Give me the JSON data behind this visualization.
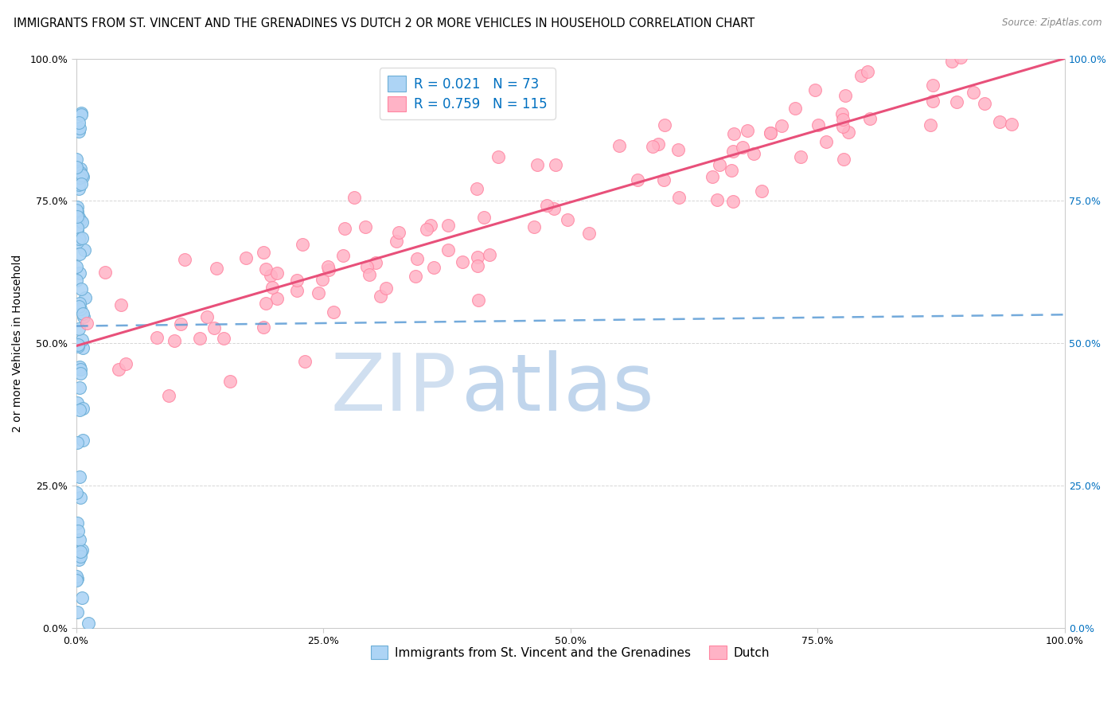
{
  "title": "IMMIGRANTS FROM ST. VINCENT AND THE GRENADINES VS DUTCH 2 OR MORE VEHICLES IN HOUSEHOLD CORRELATION CHART",
  "source_text": "Source: ZipAtlas.com",
  "ylabel": "2 or more Vehicles in Household",
  "xlim": [
    0.0,
    1.0
  ],
  "ylim": [
    0.0,
    1.0
  ],
  "xticks": [
    0.0,
    0.25,
    0.5,
    0.75,
    1.0
  ],
  "yticks": [
    0.0,
    0.25,
    0.5,
    0.75,
    1.0
  ],
  "xtick_labels": [
    "0.0%",
    "25.0%",
    "50.0%",
    "75.0%",
    "100.0%"
  ],
  "ytick_labels": [
    "0.0%",
    "25.0%",
    "50.0%",
    "75.0%",
    "100.0%"
  ],
  "blue_R": 0.021,
  "blue_N": 73,
  "pink_R": 0.759,
  "pink_N": 115,
  "blue_fill_color": "#ADD4F5",
  "blue_edge_color": "#6BAED6",
  "pink_fill_color": "#FFB3C6",
  "pink_edge_color": "#FF85A1",
  "blue_line_color": "#5B9BD5",
  "pink_line_color": "#E8507A",
  "legend_color": "#0070C0",
  "right_tick_color": "#0070C0",
  "watermark_zip_color": "#D0DFF0",
  "watermark_atlas_color": "#C0D5EC",
  "title_fontsize": 10.5,
  "tick_fontsize": 9,
  "axis_label_fontsize": 10,
  "blue_line_x0": 0.0,
  "blue_line_x1": 1.0,
  "blue_line_y0": 0.53,
  "blue_line_y1": 0.55,
  "pink_line_x0": 0.0,
  "pink_line_x1": 1.0,
  "pink_line_y0": 0.495,
  "pink_line_y1": 1.0
}
